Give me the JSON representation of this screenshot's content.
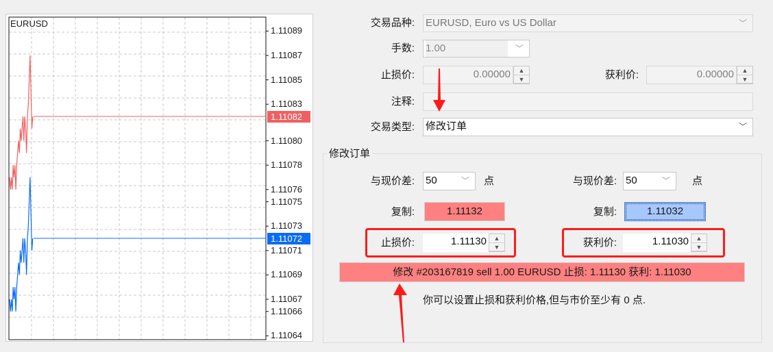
{
  "chart": {
    "symbol": "EURUSD",
    "price_labels": [
      "1.11089",
      "1.11087",
      "1.11085",
      "1.11083",
      "1.11080",
      "1.11078",
      "1.11076",
      "1.11075",
      "1.11073",
      "1.11071",
      "1.11069",
      "1.11067",
      "1.11066",
      "1.11064"
    ],
    "ask_label": "1.11082",
    "bid_label": "1.11072",
    "ask_color": "#f06060",
    "bid_color": "#0a6cf5",
    "ask_ticks": [
      1.11077,
      1.11076,
      1.11077,
      1.11076,
      1.11078,
      1.11077,
      1.11078,
      1.11076,
      1.11078,
      1.11079,
      1.1108,
      1.11079,
      1.11081,
      1.1108,
      1.11081,
      1.11082,
      1.1108,
      1.11082,
      1.11081,
      1.11079,
      1.11082,
      1.11083,
      1.11085,
      1.11087,
      1.11084,
      1.11081,
      1.11082
    ],
    "bid_ticks": [
      1.11067,
      1.11066,
      1.11067,
      1.11066,
      1.11068,
      1.11067,
      1.11068,
      1.11066,
      1.11068,
      1.11069,
      1.1107,
      1.11069,
      1.11071,
      1.1107,
      1.11071,
      1.11072,
      1.1107,
      1.11072,
      1.11071,
      1.11069,
      1.11072,
      1.11073,
      1.11075,
      1.11077,
      1.11074,
      1.11071,
      1.11072
    ]
  },
  "form": {
    "symbol_label": "交易品种:",
    "symbol_value": "EURUSD, Euro vs US Dollar",
    "volume_label": "手数:",
    "volume_value": "1.00",
    "sl_label": "止损价:",
    "sl_value": "0.00000",
    "tp_label": "获利价:",
    "tp_value": "0.00000",
    "comment_label": "注释:",
    "comment_value": "",
    "type_label": "交易类型:",
    "type_value": "修改订单"
  },
  "modify": {
    "group_title": "修改订单",
    "diff_label": "与现价差:",
    "sl_diff": "50",
    "tp_diff": "50",
    "points_unit": "点",
    "copy_label": "复制:",
    "sl_copy": "1.11132",
    "tp_copy": "1.11032",
    "sl_label": "止损价:",
    "sl_value": "1.11130",
    "tp_label": "获利价:",
    "tp_value": "1.11030",
    "modify_button": "修改 #203167819 sell 1.00 EURUSD 止损: 1.11130 获利: 1.11030",
    "hint": "你可以设置止损和获利价格,但与市价至少有 0 点."
  },
  "colors": {
    "sell_button": "#ff8080",
    "copy_tp": "#a6c8ff",
    "annotation": "#ff1a1a"
  }
}
